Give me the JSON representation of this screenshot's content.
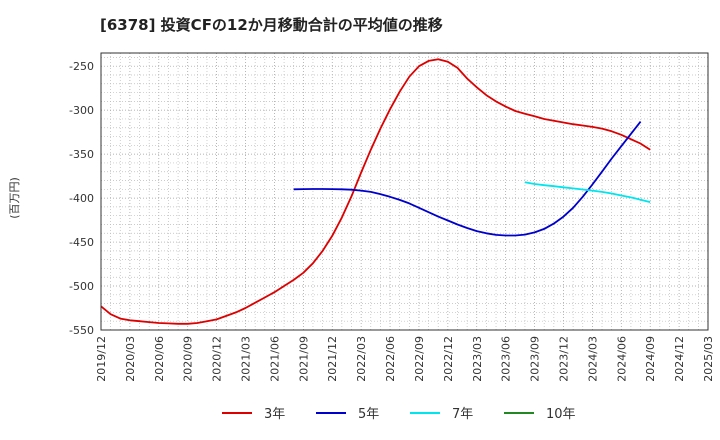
{
  "chart_data": {
    "type": "line",
    "title": "[6378]  投資CFの12か月移動合計の平均値の推移",
    "ylabel": "(百万円)",
    "xlabel": "",
    "ylim": [
      -550,
      -235
    ],
    "yticks": [
      -250,
      -300,
      -350,
      -400,
      -450,
      -500,
      -550
    ],
    "x_tick_labels": [
      "2019/12",
      "2020/03",
      "2020/06",
      "2020/09",
      "2020/12",
      "2021/03",
      "2021/06",
      "2021/09",
      "2021/12",
      "2022/03",
      "2022/06",
      "2022/09",
      "2022/12",
      "2023/03",
      "2023/06",
      "2023/09",
      "2023/12",
      "2024/03",
      "2024/06",
      "2024/09",
      "2024/12",
      "2025/03"
    ],
    "grid": true,
    "legend_position": "bottom",
    "series": [
      {
        "name": "3年",
        "color": "#dd0000",
        "points": [
          [
            "2019/12",
            -523
          ],
          [
            "2020/01",
            -532
          ],
          [
            "2020/02",
            -537
          ],
          [
            "2020/03",
            -539
          ],
          [
            "2020/04",
            -540
          ],
          [
            "2020/05",
            -541
          ],
          [
            "2020/06",
            -542
          ],
          [
            "2020/07",
            -542.5
          ],
          [
            "2020/08",
            -543
          ],
          [
            "2020/09",
            -543
          ],
          [
            "2020/10",
            -542
          ],
          [
            "2020/11",
            -540
          ],
          [
            "2020/12",
            -538
          ],
          [
            "2021/01",
            -534
          ],
          [
            "2021/02",
            -530
          ],
          [
            "2021/03",
            -525
          ],
          [
            "2021/04",
            -519
          ],
          [
            "2021/05",
            -513
          ],
          [
            "2021/06",
            -507
          ],
          [
            "2021/07",
            -500
          ],
          [
            "2021/08",
            -493
          ],
          [
            "2021/09",
            -485
          ],
          [
            "2021/10",
            -474
          ],
          [
            "2021/11",
            -460
          ],
          [
            "2021/12",
            -443
          ],
          [
            "2022/01",
            -422
          ],
          [
            "2022/02",
            -398
          ],
          [
            "2022/03",
            -371
          ],
          [
            "2022/04",
            -345
          ],
          [
            "2022/05",
            -321
          ],
          [
            "2022/06",
            -299
          ],
          [
            "2022/07",
            -279
          ],
          [
            "2022/08",
            -262
          ],
          [
            "2022/09",
            -250
          ],
          [
            "2022/10",
            -244
          ],
          [
            "2022/11",
            -242
          ],
          [
            "2022/12",
            -245
          ],
          [
            "2023/01",
            -252
          ],
          [
            "2023/02",
            -264
          ],
          [
            "2023/03",
            -274
          ],
          [
            "2023/04",
            -283
          ],
          [
            "2023/05",
            -290
          ],
          [
            "2023/06",
            -296
          ],
          [
            "2023/07",
            -301
          ],
          [
            "2023/08",
            -304
          ],
          [
            "2023/09",
            -307
          ],
          [
            "2023/10",
            -310
          ],
          [
            "2023/11",
            -312
          ],
          [
            "2023/12",
            -314
          ],
          [
            "2024/01",
            -316
          ],
          [
            "2024/02",
            -317.5
          ],
          [
            "2024/03",
            -319
          ],
          [
            "2024/04",
            -321
          ],
          [
            "2024/05",
            -324
          ],
          [
            "2024/06",
            -328
          ],
          [
            "2024/07",
            -333
          ],
          [
            "2024/08",
            -338
          ],
          [
            "2024/09",
            -345
          ]
        ]
      },
      {
        "name": "5年",
        "color": "#0000cc",
        "points": [
          [
            "2021/08",
            -390
          ],
          [
            "2021/09",
            -389.8
          ],
          [
            "2021/10",
            -389.7
          ],
          [
            "2021/11",
            -389.7
          ],
          [
            "2021/12",
            -389.8
          ],
          [
            "2022/01",
            -390
          ],
          [
            "2022/02",
            -390.5
          ],
          [
            "2022/03",
            -391.5
          ],
          [
            "2022/04",
            -393
          ],
          [
            "2022/05",
            -395.5
          ],
          [
            "2022/06",
            -398.5
          ],
          [
            "2022/07",
            -402
          ],
          [
            "2022/08",
            -406
          ],
          [
            "2022/09",
            -411
          ],
          [
            "2022/10",
            -416
          ],
          [
            "2022/11",
            -421
          ],
          [
            "2022/12",
            -425.5
          ],
          [
            "2023/01",
            -430
          ],
          [
            "2023/02",
            -434
          ],
          [
            "2023/03",
            -437.5
          ],
          [
            "2023/04",
            -440
          ],
          [
            "2023/05",
            -441.8
          ],
          [
            "2023/06",
            -442.5
          ],
          [
            "2023/07",
            -442.5
          ],
          [
            "2023/08",
            -441.5
          ],
          [
            "2023/09",
            -439
          ],
          [
            "2023/10",
            -435
          ],
          [
            "2023/11",
            -429
          ],
          [
            "2023/12",
            -421
          ],
          [
            "2024/01",
            -411
          ],
          [
            "2024/02",
            -398.5
          ],
          [
            "2024/03",
            -384.5
          ],
          [
            "2024/04",
            -370
          ],
          [
            "2024/05",
            -355
          ],
          [
            "2024/06",
            -341
          ],
          [
            "2024/07",
            -327
          ],
          [
            "2024/08",
            -313
          ]
        ]
      },
      {
        "name": "7年",
        "color": "#00e5ee",
        "points": [
          [
            "2023/08",
            -382
          ],
          [
            "2023/09",
            -384
          ],
          [
            "2023/10",
            -385.3
          ],
          [
            "2023/11",
            -386.5
          ],
          [
            "2023/12",
            -387.7
          ],
          [
            "2024/01",
            -389
          ],
          [
            "2024/02",
            -390.2
          ],
          [
            "2024/03",
            -391.5
          ],
          [
            "2024/04",
            -393
          ],
          [
            "2024/05",
            -394.8
          ],
          [
            "2024/06",
            -397
          ],
          [
            "2024/07",
            -399.2
          ],
          [
            "2024/08",
            -401.8
          ],
          [
            "2024/09",
            -404.5
          ]
        ]
      },
      {
        "name": "10年",
        "color": "#228822",
        "points": []
      }
    ]
  }
}
